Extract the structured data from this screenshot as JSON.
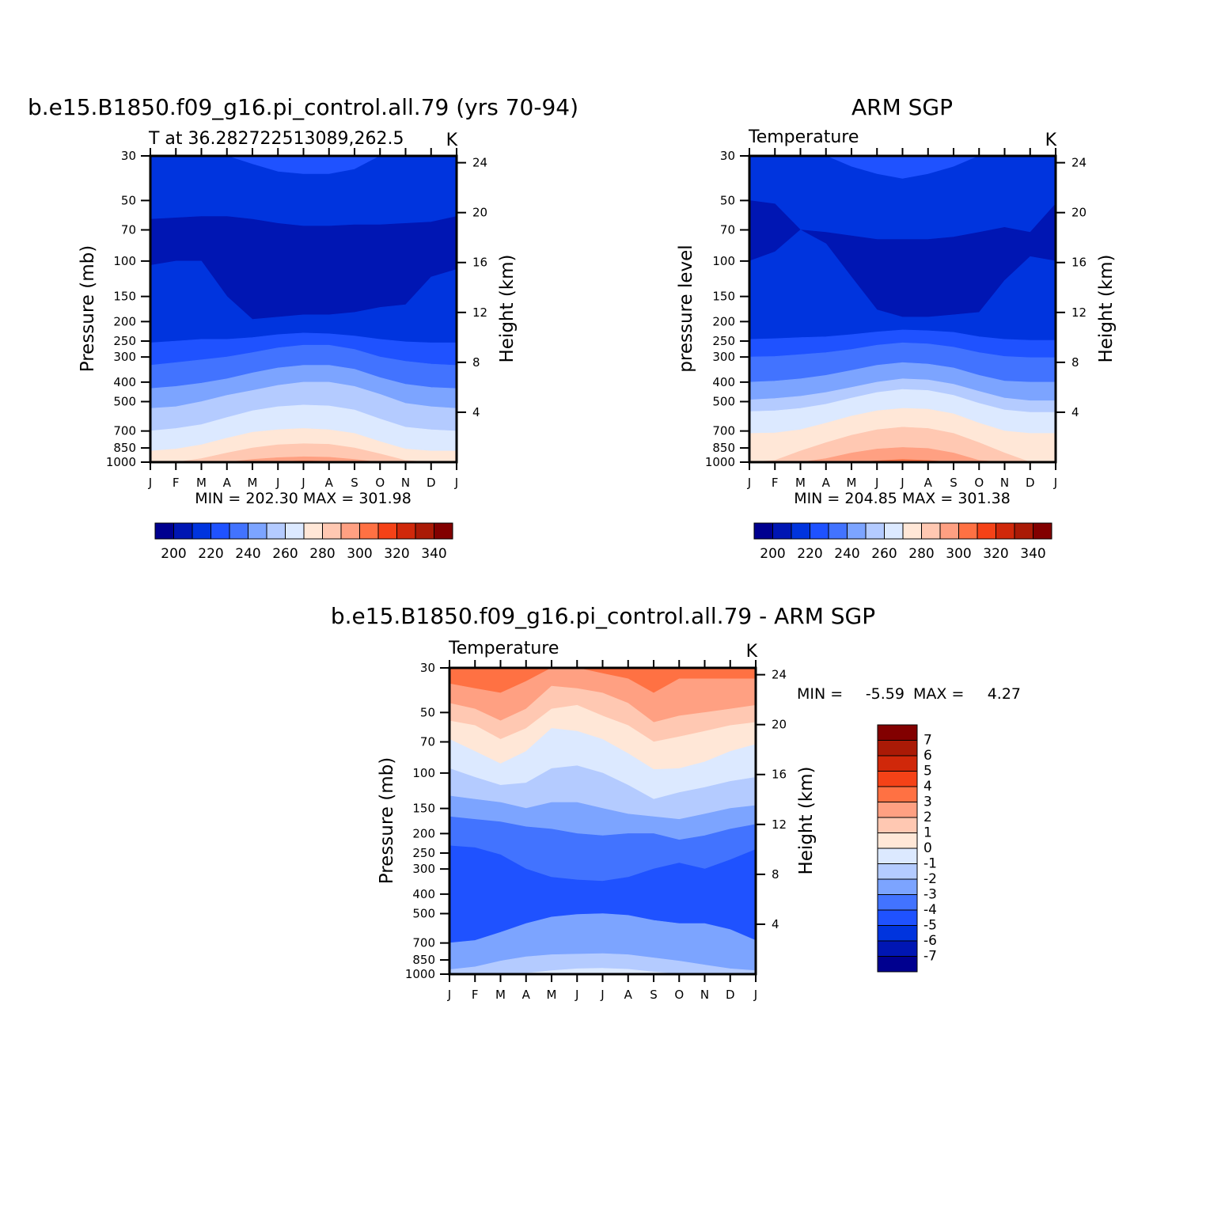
{
  "colors": {
    "abs_levels": [
      "#00008f",
      "#0016b3",
      "#0034de",
      "#1f52ff",
      "#4273ff",
      "#7ca4ff",
      "#b4cbff",
      "#dce9ff",
      "#ffe7d7",
      "#ffc8b2",
      "#ffa082",
      "#ff7143",
      "#f54217",
      "#d0280a",
      "#aa1a06",
      "#820000"
    ],
    "diff_levels": [
      "#00008f",
      "#0016b3",
      "#0034de",
      "#1f52ff",
      "#4273ff",
      "#7ca4ff",
      "#b4cbff",
      "#dce9ff",
      "#ffe7d7",
      "#ffc8b2",
      "#ffa082",
      "#ff7143",
      "#f54217",
      "#d0280a",
      "#aa1a06",
      "#820000"
    ]
  },
  "chart_data": [
    {
      "type": "heatmap",
      "title": "b.e15.B1850.f09_g16.pi_control.all.79 (yrs 70-94)",
      "subtitle": "T at 36.282722513089,262.5",
      "units": "K",
      "ylabel": "Pressure (mb)",
      "ylabel_right": "Height (km)",
      "x_ticks": [
        "J",
        "F",
        "M",
        "A",
        "M",
        "J",
        "J",
        "A",
        "S",
        "O",
        "N",
        "D",
        "J"
      ],
      "y_ticks": [
        "30",
        "50",
        "70",
        "100",
        "150",
        "200",
        "250",
        "300",
        "400",
        "500",
        "700",
        "850",
        "1000"
      ],
      "y_right_ticks": [
        "24",
        "20",
        "16",
        "12",
        "8",
        "4"
      ],
      "scale": "log-pressure",
      "stats": "MIN = 202.30 MAX = 301.98",
      "min": 202.3,
      "max": 301.98,
      "colorbar_labels": [
        "200",
        "220",
        "240",
        "260",
        "280",
        "300",
        "320",
        "340"
      ],
      "levels": [
        195,
        200,
        205,
        210,
        215,
        220,
        225,
        230,
        235,
        240,
        245,
        250,
        255,
        260,
        265,
        270,
        275,
        280,
        285,
        290,
        295,
        300,
        305,
        310,
        315,
        320,
        325,
        330,
        335,
        340,
        345,
        350
      ]
    },
    {
      "type": "heatmap",
      "title": "ARM SGP",
      "subtitle": "Temperature",
      "units": "K",
      "ylabel": "pressure level",
      "ylabel_right": "Height (km)",
      "x_ticks": [
        "J",
        "F",
        "M",
        "A",
        "M",
        "J",
        "J",
        "A",
        "S",
        "O",
        "N",
        "D",
        "J"
      ],
      "y_ticks": [
        "30",
        "50",
        "70",
        "100",
        "150",
        "200",
        "250",
        "300",
        "400",
        "500",
        "700",
        "850",
        "1000"
      ],
      "y_right_ticks": [
        "24",
        "20",
        "16",
        "12",
        "8",
        "4"
      ],
      "scale": "log-pressure",
      "stats": "MIN = 204.85 MAX = 301.38",
      "min": 204.85,
      "max": 301.38,
      "colorbar_labels": [
        "200",
        "220",
        "240",
        "260",
        "280",
        "300",
        "320",
        "340"
      ]
    },
    {
      "type": "heatmap",
      "title": "b.e15.B1850.f09_g16.pi_control.all.79 - ARM SGP",
      "subtitle": "Temperature",
      "units": "K",
      "ylabel": "Pressure (mb)",
      "ylabel_right": "Height (km)",
      "x_ticks": [
        "J",
        "F",
        "M",
        "A",
        "M",
        "J",
        "J",
        "A",
        "S",
        "O",
        "N",
        "D",
        "J"
      ],
      "y_ticks": [
        "30",
        "50",
        "70",
        "100",
        "150",
        "200",
        "250",
        "300",
        "400",
        "500",
        "700",
        "850",
        "1000"
      ],
      "y_right_ticks": [
        "24",
        "20",
        "16",
        "12",
        "8",
        "4"
      ],
      "scale": "log-pressure",
      "stats_min_label": "MIN =",
      "stats_min_value": "-5.59",
      "stats_max_label": "MAX =",
      "stats_max_value": "4.27",
      "min": -5.59,
      "max": 4.27,
      "colorbar_labels": [
        "7",
        "6",
        "5",
        "4",
        "3",
        "2",
        "1",
        "0",
        "-1",
        "-2",
        "-3",
        "-4",
        "-5",
        "-6",
        "-7"
      ]
    }
  ]
}
